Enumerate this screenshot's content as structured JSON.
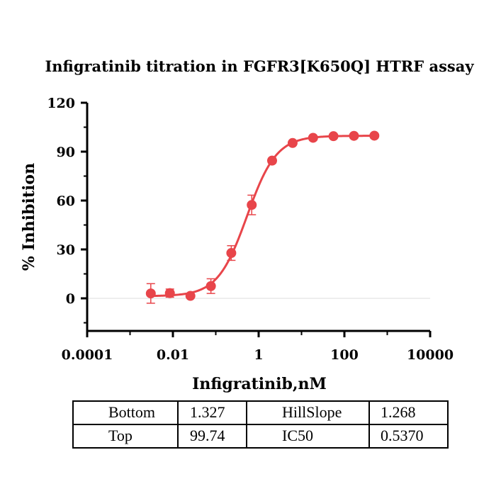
{
  "chart_data": {
    "type": "scatter",
    "title": "Infigratinib titration in FGFR3[K650Q] HTRF assay",
    "xlabel": "Infigratinib,nM",
    "ylabel": "% Inhibition",
    "x_scale": "log",
    "xlim": [
      0.0001,
      10000
    ],
    "ylim": [
      -20,
      120
    ],
    "x_ticks": [
      0.0001,
      0.01,
      1,
      100,
      10000
    ],
    "x_tick_labels": [
      "0.0001",
      "0.01",
      "1",
      "100",
      "10000"
    ],
    "y_ticks": [
      0,
      30,
      60,
      90,
      120
    ],
    "y_tick_labels": [
      "0",
      "30",
      "60",
      "90",
      "120"
    ],
    "grid": false,
    "zero_line": true,
    "color": "#e8454a",
    "points": [
      {
        "x": 0.00305,
        "y": 3.0,
        "err": 6.0
      },
      {
        "x": 0.0085,
        "y": 3.2,
        "err": 2.5
      },
      {
        "x": 0.0256,
        "y": 1.5,
        "err": 0
      },
      {
        "x": 0.077,
        "y": 7.5,
        "err": 4.5
      },
      {
        "x": 0.23,
        "y": 27.8,
        "err": 4.5
      },
      {
        "x": 0.69,
        "y": 57.3,
        "err": 6.0
      },
      {
        "x": 2.06,
        "y": 84.5,
        "err": 1.5
      },
      {
        "x": 6.2,
        "y": 95.3,
        "err": 0
      },
      {
        "x": 18.6,
        "y": 98.5,
        "err": 0
      },
      {
        "x": 55.6,
        "y": 99.5,
        "err": 0
      },
      {
        "x": 167,
        "y": 99.7,
        "err": 0
      },
      {
        "x": 500,
        "y": 99.8,
        "err": 0
      }
    ],
    "fit": {
      "model": "four-parameter logistic",
      "bottom": 1.327,
      "top": 99.74,
      "hill_slope": 1.268,
      "ic50": 0.537
    },
    "parameter_table": [
      [
        "Bottom",
        "1.327",
        "HillSlope",
        "1.268"
      ],
      [
        "Top",
        "99.74",
        "IC50",
        "0.5370"
      ]
    ]
  }
}
